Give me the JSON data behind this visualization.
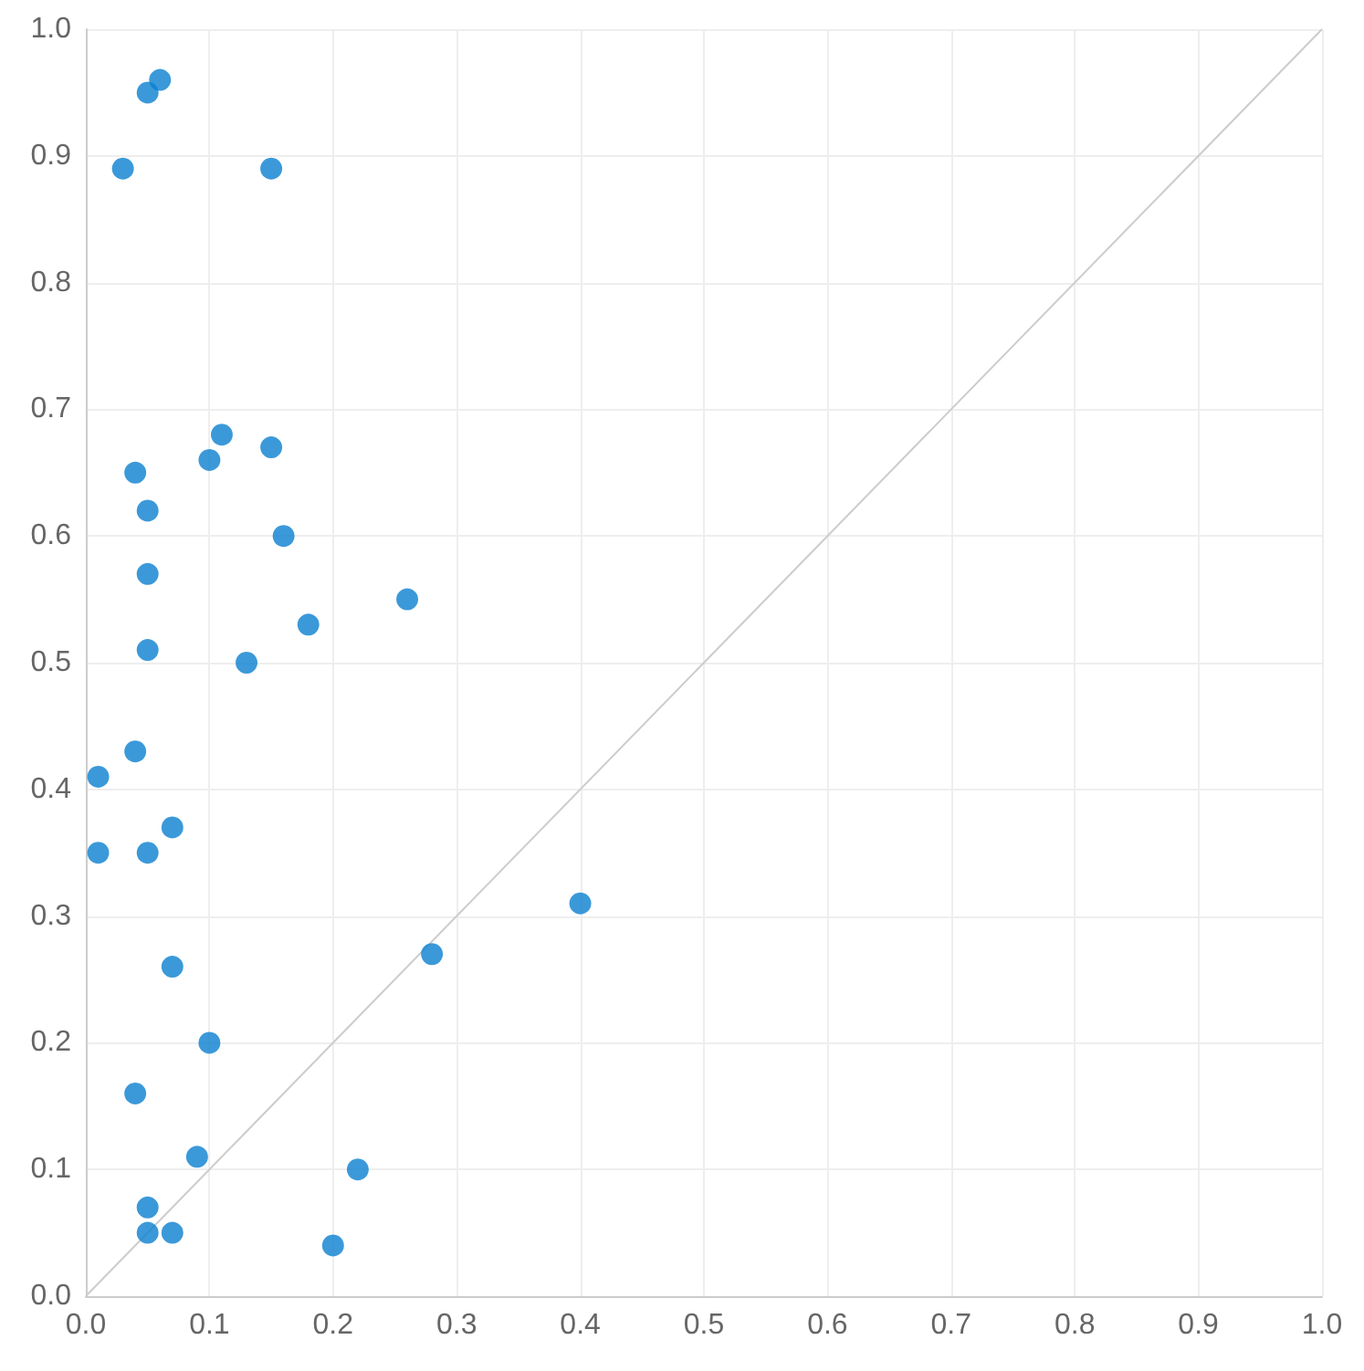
{
  "chart_data": {
    "type": "scatter",
    "xlim": [
      0,
      1
    ],
    "ylim": [
      0,
      1
    ],
    "xticks": [
      {
        "value": 0,
        "label": "0.0"
      },
      0.1,
      0.2,
      0.3,
      0.4,
      0.5,
      0.6,
      0.7,
      0.8,
      0.9,
      {
        "value": 1,
        "label": "1.0"
      }
    ],
    "yticks": [
      {
        "value": 0,
        "label": "0.0"
      },
      0.1,
      0.2,
      0.3,
      0.4,
      0.5,
      0.6,
      0.7,
      0.8,
      0.9,
      {
        "value": 1,
        "label": "1.0"
      }
    ],
    "grid": true,
    "marker": "circle",
    "series": [
      {
        "type": "line",
        "color": "#cccccc",
        "x": [
          0,
          1
        ],
        "values": [
          0,
          1
        ],
        "marker": "none"
      },
      {
        "color": "#0a7fd0",
        "x": [
          0.01,
          0.01,
          0.03,
          0.05,
          0.06,
          0.15,
          0.04,
          0.05,
          0.05,
          0.05,
          0.04,
          0.07,
          0.05,
          0.07,
          0.1,
          0.04,
          0.09,
          0.05,
          0.05,
          0.07,
          0.1,
          0.11,
          0.15,
          0.16,
          0.18,
          0.13,
          0.26,
          0.4,
          0.28,
          0.22,
          0.2
        ],
        "values": [
          0.35,
          0.41,
          0.89,
          0.95,
          0.96,
          0.89,
          0.65,
          0.62,
          0.57,
          0.51,
          0.43,
          0.37,
          0.35,
          0.26,
          0.2,
          0.16,
          0.11,
          0.07,
          0.05,
          0.05,
          0.66,
          0.68,
          0.67,
          0.6,
          0.53,
          0.5,
          0.55,
          0.31,
          0.27,
          0.1,
          0.04
        ]
      }
    ]
  }
}
